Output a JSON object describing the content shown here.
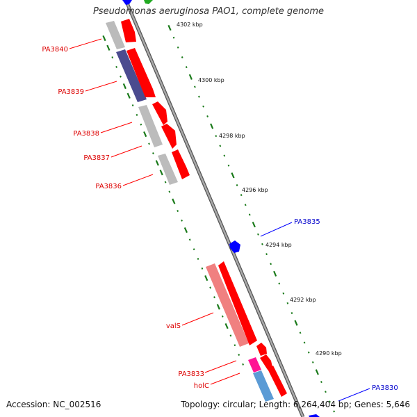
{
  "title": "Pseudomonas aeruginosa PAO1, complete genome",
  "footer": {
    "accession": "Accession: NC_002516",
    "topology": "Topology: circular; Length: 6,264,404 bp; Genes: 5,646"
  },
  "colors": {
    "forward_strand": "#ff0000",
    "reverse_strand": "#0000ff",
    "tick": "#1a7a1a",
    "backbone": "#808080"
  },
  "ruler": [
    {
      "label": "4302 kbp"
    },
    {
      "label": "4300 kbp"
    },
    {
      "label": "4298 kbp"
    },
    {
      "label": "4296 kbp"
    },
    {
      "label": "4294 kbp"
    },
    {
      "label": "4292 kbp"
    },
    {
      "label": "4290 kbp"
    }
  ],
  "genes": [
    {
      "label": "PA3840",
      "strand": "forward",
      "color": "#ff0000"
    },
    {
      "label": "PA3839",
      "strand": "forward",
      "color": "#ff0000"
    },
    {
      "label": "PA3838",
      "strand": "forward",
      "color": "#ff0000"
    },
    {
      "label": "PA3837",
      "strand": "forward",
      "color": "#ff0000"
    },
    {
      "label": "PA3836",
      "strand": "forward",
      "color": "#ff0000"
    },
    {
      "label": "PA3835",
      "strand": "reverse",
      "color": "#0000ff"
    },
    {
      "label": "valS",
      "strand": "forward",
      "color": "#ff0000"
    },
    {
      "label": "PA3833",
      "strand": "forward",
      "color": "#ff0000"
    },
    {
      "label": "holC",
      "strand": "forward",
      "color": "#ff0000"
    },
    {
      "label": "PA3830",
      "strand": "reverse",
      "color": "#0000ff"
    }
  ]
}
